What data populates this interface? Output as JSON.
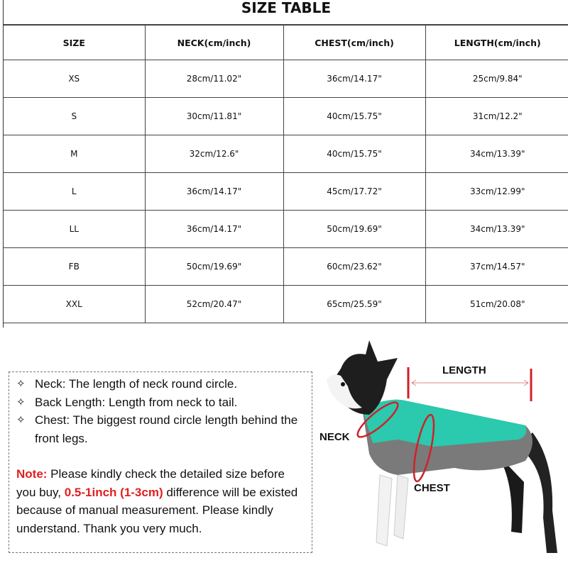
{
  "title": "SIZE TABLE",
  "table": {
    "headers": [
      "SIZE",
      "NECK(cm/inch)",
      "CHEST(cm/inch)",
      "LENGTH(cm/inch)"
    ],
    "rows": [
      [
        "XS",
        "28cm/11.02\"",
        "36cm/14.17\"",
        "25cm/9.84\""
      ],
      [
        "S",
        "30cm/11.81\"",
        "40cm/15.75\"",
        "31cm/12.2\""
      ],
      [
        "M",
        "32cm/12.6\"",
        "40cm/15.75\"",
        "34cm/13.39\""
      ],
      [
        "L",
        "36cm/14.17\"",
        "45cm/17.72\"",
        "33cm/12.99\""
      ],
      [
        "LL",
        "36cm/14.17\"",
        "50cm/19.69\"",
        "34cm/13.39\""
      ],
      [
        "FB",
        "50cm/19.69\"",
        "60cm/23.62\"",
        "37cm/14.57\""
      ],
      [
        "XXL",
        "52cm/20.47\"",
        "65cm/25.59\"",
        "51cm/20.08\""
      ]
    ]
  },
  "notes": {
    "bullet_symbol": "✧",
    "bullets": [
      "Neck: The length of neck round circle.",
      "Back Length: Length from neck to tail.",
      "Chest: The biggest round circle length behind the front legs."
    ],
    "note_label": "Note:",
    "note_text_1": " Please kindly check the detailed size before you buy, ",
    "note_highlight": "0.5-1inch (1-3cm)",
    "note_text_2": " difference will be existed because of manual measurement. Please kindly understand. Thank you very much."
  },
  "diagram": {
    "length_label": "LENGTH",
    "neck_label": "NECK",
    "chest_label": "CHEST"
  },
  "colors": {
    "accent_red": "#e02020",
    "coat_teal": "#2bc9ad",
    "coat_gray": "#7a7a7a"
  }
}
